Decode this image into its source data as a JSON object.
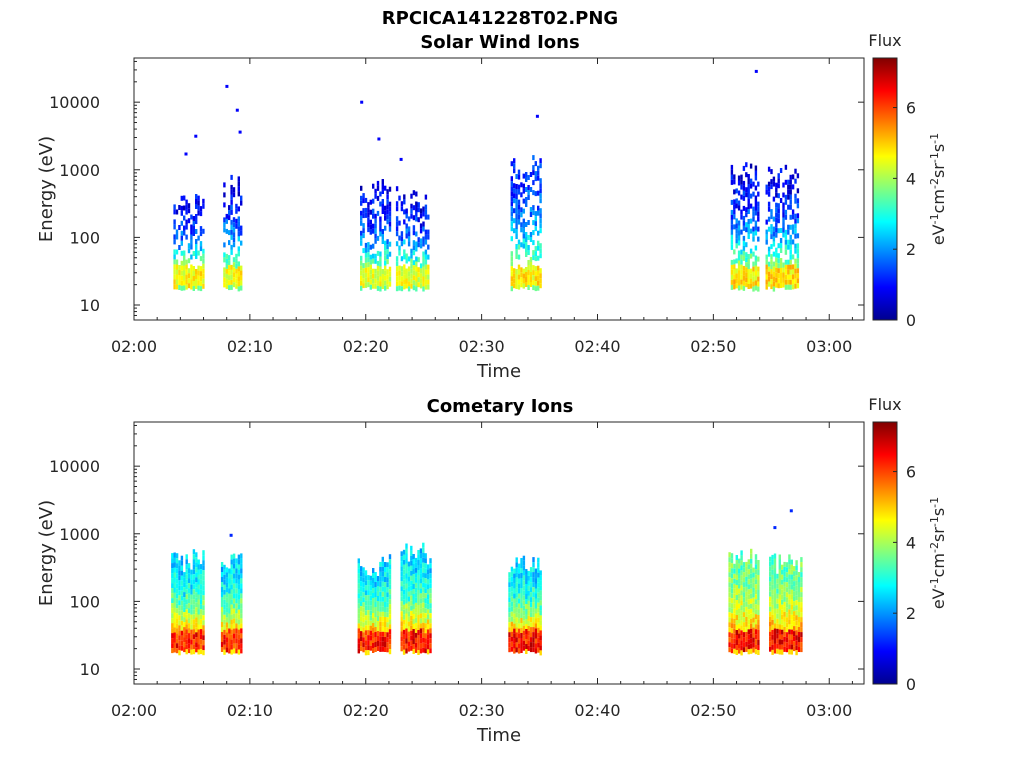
{
  "figure": {
    "filename_title": "RPCICA141228T02.PNG"
  },
  "colors": {
    "colormap": [
      "#00008f",
      "#0000ff",
      "#0080ff",
      "#00ffff",
      "#80ff80",
      "#ffff00",
      "#ff8000",
      "#ff0000",
      "#800000"
    ],
    "axis": "#262626",
    "background": "#ffffff"
  },
  "chart_data": [
    {
      "type": "heatmap",
      "title": "Solar Wind Ions",
      "xlabel": "Time",
      "ylabel": "Energy (eV)",
      "x_ticks": [
        "02:00",
        "02:10",
        "02:20",
        "02:30",
        "02:40",
        "02:50",
        "03:00"
      ],
      "y_ticks": [
        "10",
        "100",
        "1000",
        "10000"
      ],
      "y_scale": "log",
      "xlim_minutes": [
        0,
        63
      ],
      "ylim": [
        6,
        45000
      ],
      "colorbar": {
        "title": "Flux",
        "unit_base": [
          "eV",
          "cm",
          "sr",
          "s"
        ],
        "unit_exp": [
          "-1",
          "-2",
          "-1",
          "-1"
        ],
        "ticks": [
          "0",
          "2",
          "4",
          "6"
        ],
        "range": [
          0,
          7.4
        ]
      },
      "bursts": [
        {
          "start_min": 3.4,
          "end_min": 6.1,
          "core_flux": 5.0,
          "core_emin": 20,
          "core_emax": 40,
          "spread_emax": 450,
          "lowflux": 0.8,
          "high_dots": [
            1800,
            3300
          ]
        },
        {
          "start_min": 7.7,
          "end_min": 9.3,
          "core_flux": 5.0,
          "core_emin": 20,
          "core_emax": 40,
          "spread_emax": 900,
          "lowflux": 0.8,
          "high_dots": [
            18000,
            8000,
            3800
          ]
        },
        {
          "start_min": 19.5,
          "end_min": 22.2,
          "core_flux": 4.8,
          "core_emin": 20,
          "core_emax": 40,
          "spread_emax": 800,
          "lowflux": 0.8,
          "high_dots": [
            10500,
            3000
          ]
        },
        {
          "start_min": 22.6,
          "end_min": 25.5,
          "core_flux": 4.8,
          "core_emin": 20,
          "core_emax": 40,
          "spread_emax": 600,
          "lowflux": 0.8,
          "high_dots": [
            1500
          ]
        },
        {
          "start_min": 32.5,
          "end_min": 35.2,
          "core_flux": 5.1,
          "core_emin": 20,
          "core_emax": 40,
          "spread_emax": 1700,
          "lowflux": 1.2,
          "high_dots": [
            6500
          ]
        },
        {
          "start_min": 51.5,
          "end_min": 54.0,
          "core_flux": 5.2,
          "core_emin": 20,
          "core_emax": 40,
          "spread_emax": 1300,
          "lowflux": 0.8,
          "high_dots": [
            30000
          ]
        },
        {
          "start_min": 54.5,
          "end_min": 57.5,
          "core_flux": 5.2,
          "core_emin": 20,
          "core_emax": 40,
          "spread_emax": 1200,
          "lowflux": 0.8,
          "high_dots": []
        }
      ]
    },
    {
      "type": "heatmap",
      "title": "Cometary Ions",
      "xlabel": "Time",
      "ylabel": "Energy (eV)",
      "x_ticks": [
        "02:00",
        "02:10",
        "02:20",
        "02:30",
        "02:40",
        "02:50",
        "03:00"
      ],
      "y_ticks": [
        "10",
        "100",
        "1000",
        "10000"
      ],
      "y_scale": "log",
      "xlim_minutes": [
        0,
        63
      ],
      "ylim": [
        6,
        45000
      ],
      "colorbar": {
        "title": "Flux",
        "unit_base": [
          "eV",
          "cm",
          "sr",
          "s"
        ],
        "unit_exp": [
          "-1",
          "-2",
          "-1",
          "-1"
        ],
        "ticks": [
          "0",
          "2",
          "4",
          "6"
        ],
        "range": [
          0,
          7.4
        ]
      },
      "bursts": [
        {
          "start_min": 3.2,
          "end_min": 6.1,
          "core_flux": 6.8,
          "core_emin": 20,
          "core_emax": 40,
          "spread_emax": 600,
          "lowflux": 2.5,
          "high_dots": []
        },
        {
          "start_min": 7.5,
          "end_min": 9.4,
          "core_flux": 6.7,
          "core_emin": 20,
          "core_emax": 40,
          "spread_emax": 550,
          "lowflux": 2.5,
          "high_dots": [
            1000
          ]
        },
        {
          "start_min": 19.3,
          "end_min": 22.2,
          "core_flux": 6.8,
          "core_emin": 20,
          "core_emax": 40,
          "spread_emax": 500,
          "lowflux": 2.5,
          "high_dots": []
        },
        {
          "start_min": 23.0,
          "end_min": 25.6,
          "core_flux": 6.9,
          "core_emin": 20,
          "core_emax": 40,
          "spread_emax": 750,
          "lowflux": 2.5,
          "high_dots": []
        },
        {
          "start_min": 32.3,
          "end_min": 35.1,
          "core_flux": 7.0,
          "core_emin": 20,
          "core_emax": 40,
          "spread_emax": 500,
          "lowflux": 2.5,
          "high_dots": []
        },
        {
          "start_min": 51.3,
          "end_min": 54.0,
          "core_flux": 6.9,
          "core_emin": 20,
          "core_emax": 40,
          "spread_emax": 600,
          "lowflux": 3.5,
          "high_dots": []
        },
        {
          "start_min": 54.8,
          "end_min": 57.6,
          "core_flux": 7.0,
          "core_emin": 20,
          "core_emax": 40,
          "spread_emax": 550,
          "lowflux": 3.5,
          "high_dots": [
            1300,
            2300
          ]
        }
      ]
    }
  ]
}
